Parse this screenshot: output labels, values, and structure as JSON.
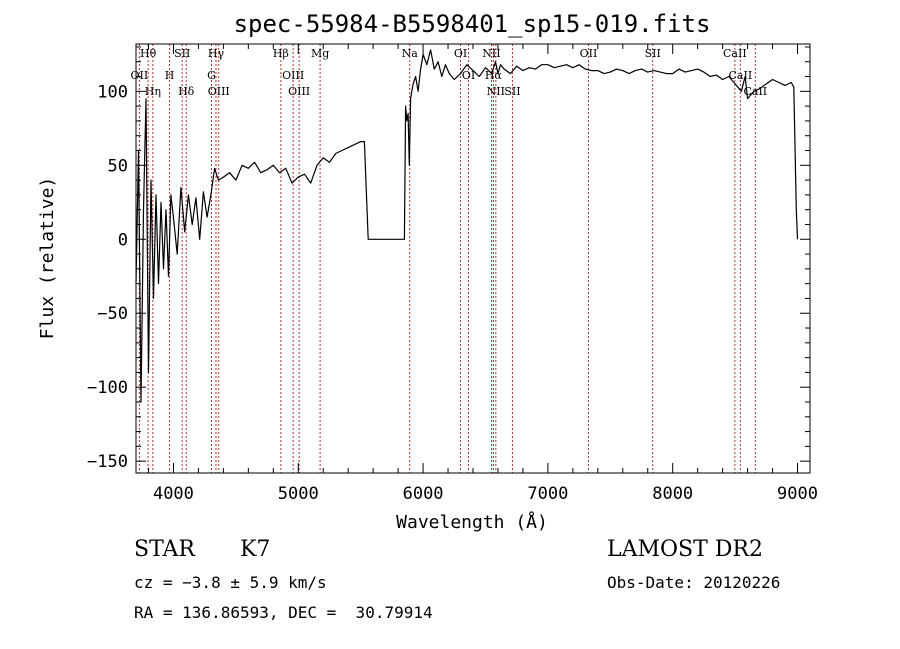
{
  "chart_data": {
    "type": "line",
    "title": "spec-55984-B5598401_sp15-019.fits",
    "xlabel": "Wavelength (Å)",
    "ylabel": "Flux (relative)",
    "xlim": [
      3700,
      9100
    ],
    "ylim": [
      -158,
      132
    ],
    "x_ticks": [
      4000,
      5000,
      6000,
      7000,
      8000,
      9000
    ],
    "y_ticks": [
      -150,
      -100,
      -50,
      0,
      50,
      100
    ],
    "x_tick_labels": [
      "4000",
      "5000",
      "6000",
      "7000",
      "8000",
      "9000"
    ],
    "y_tick_labels": [
      "−150",
      "−100",
      "−50",
      "0",
      "50",
      "100"
    ],
    "grid": false,
    "legend": "none",
    "colors": {
      "spectrum": "#000000",
      "line_marker": "#b03030"
    },
    "series": [
      {
        "x": [
          3700,
          3720,
          3740,
          3760,
          3780,
          3800,
          3820,
          3840,
          3860,
          3880,
          3900,
          3920,
          3940,
          3960,
          3980,
          4000,
          4030,
          4060,
          4090,
          4120,
          4150,
          4180,
          4210,
          4240,
          4270,
          4300,
          4330,
          4360,
          4400,
          4450,
          4500,
          4550,
          4600,
          4650,
          4700,
          4750,
          4800,
          4850,
          4900,
          4950,
          5000,
          5050,
          5100,
          5150,
          5200,
          5250,
          5300,
          5350,
          5400,
          5450,
          5500,
          5530,
          5560,
          5580,
          5850,
          5860,
          5870,
          5880,
          5890,
          5900,
          5910,
          5920,
          5940,
          5960,
          5980,
          6000,
          6030,
          6060,
          6090,
          6120,
          6150,
          6180,
          6210,
          6250,
          6300,
          6350,
          6400,
          6450,
          6500,
          6550,
          6580,
          6600,
          6620,
          6650,
          6700,
          6750,
          6800,
          6850,
          6900,
          6950,
          7000,
          7050,
          7100,
          7150,
          7200,
          7250,
          7300,
          7350,
          7400,
          7450,
          7500,
          7550,
          7600,
          7650,
          7700,
          7750,
          7800,
          7850,
          7900,
          7950,
          8000,
          8050,
          8100,
          8150,
          8200,
          8250,
          8300,
          8350,
          8400,
          8450,
          8500,
          8550,
          8580,
          8600,
          8650,
          8700,
          8750,
          8800,
          8850,
          8900,
          8950,
          8970,
          8990,
          9000
        ],
        "y": [
          -30,
          60,
          -110,
          20,
          95,
          -90,
          40,
          -40,
          30,
          -30,
          25,
          -20,
          20,
          -25,
          30,
          15,
          -10,
          35,
          5,
          30,
          10,
          28,
          0,
          32,
          15,
          30,
          48,
          40,
          42,
          45,
          40,
          50,
          48,
          52,
          45,
          47,
          50,
          45,
          48,
          38,
          42,
          44,
          38,
          50,
          55,
          52,
          58,
          60,
          62,
          64,
          66,
          66,
          0,
          0,
          0,
          90,
          80,
          85,
          50,
          95,
          100,
          105,
          110,
          100,
          115,
          125,
          118,
          128,
          115,
          120,
          110,
          118,
          112,
          108,
          112,
          118,
          114,
          110,
          116,
          112,
          120,
          112,
          118,
          115,
          112,
          117,
          114,
          116,
          115,
          118,
          118,
          116,
          117,
          118,
          116,
          118,
          115,
          114,
          114,
          112,
          113,
          115,
          114,
          112,
          114,
          115,
          113,
          114,
          113,
          112,
          112,
          115,
          113,
          114,
          115,
          113,
          110,
          111,
          108,
          110,
          105,
          100,
          110,
          95,
          100,
          102,
          105,
          108,
          106,
          104,
          106,
          103,
          20,
          0
        ]
      }
    ],
    "line_markers": [
      {
        "label": "Hθ",
        "x": 3797
      },
      {
        "label": "OII",
        "x": 3727
      },
      {
        "label": "Hη",
        "x": 3835
      },
      {
        "label": "H",
        "x": 3969
      },
      {
        "label": "SII",
        "x": 4070
      },
      {
        "label": "Hδ",
        "x": 4102
      },
      {
        "label": "Hγ",
        "x": 4341
      },
      {
        "label": "G",
        "x": 4305
      },
      {
        "label": "OIII",
        "x": 4363
      },
      {
        "label": "Hβ",
        "x": 4861
      },
      {
        "label": "OIII",
        "x": 4959
      },
      {
        "label": "OIII",
        "x": 5007
      },
      {
        "label": "Mg",
        "x": 5175
      },
      {
        "label": "Na",
        "x": 5893
      },
      {
        "label": "OI",
        "x": 6300
      },
      {
        "label": "OI",
        "x": 6364
      },
      {
        "label": "NII",
        "x": 6548
      },
      {
        "label": "Hα",
        "x": 6563
      },
      {
        "label": "NII",
        "x": 6583
      },
      {
        "label": "SII",
        "x": 6716
      },
      {
        "label": "OII",
        "x": 7325
      },
      {
        "label": "SII",
        "x": 7840
      },
      {
        "label": "CaII",
        "x": 8498
      },
      {
        "label": "CaII",
        "x": 8542
      },
      {
        "label": "CaII",
        "x": 8662
      }
    ]
  },
  "info": {
    "object_class": "STAR",
    "subclass": "K7",
    "survey": "LAMOST DR2",
    "redshift": "cz = −3.8 ± 5.9 km/s",
    "obs_date": "Obs-Date: 20120226",
    "coordinates": "RA = 136.86593, DEC =  30.79914"
  }
}
